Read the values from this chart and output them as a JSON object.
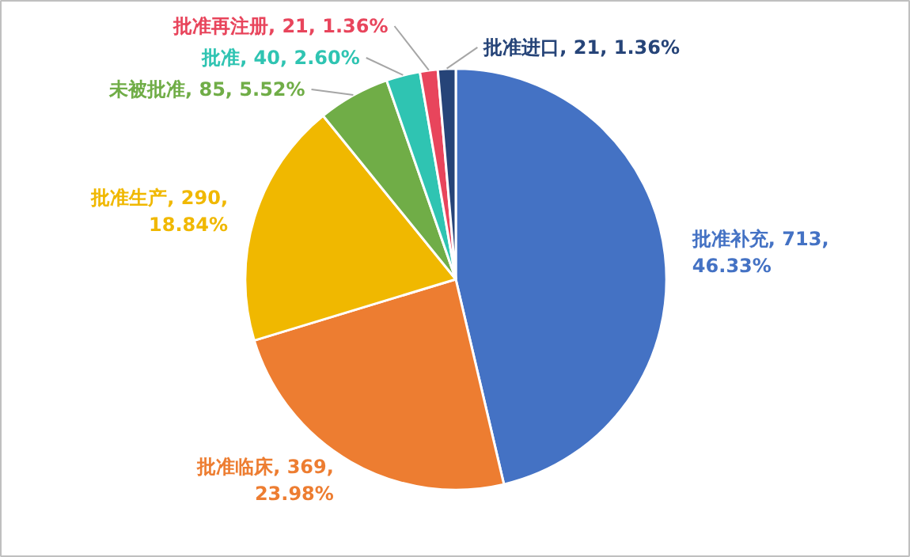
{
  "chart_data": {
    "type": "pie",
    "categories": [
      "批准补充",
      "批准临床",
      "批准生产",
      "未被批准",
      "批准",
      "批准再注册",
      "批准进口"
    ],
    "values": [
      713,
      369,
      290,
      85,
      40,
      21,
      21
    ],
    "value_labels": [
      "713, 46.33%",
      "369, 23.98%",
      "290, 18.84%",
      "85, 5.52%",
      "40, 2.60%",
      "21, 1.36%",
      "21, 1.36%"
    ],
    "colors": [
      "#4472c4",
      "#ed7d31",
      "#f0b800",
      "#70ad47",
      "#2fc4b2",
      "#e8455c",
      "#264478"
    ]
  }
}
